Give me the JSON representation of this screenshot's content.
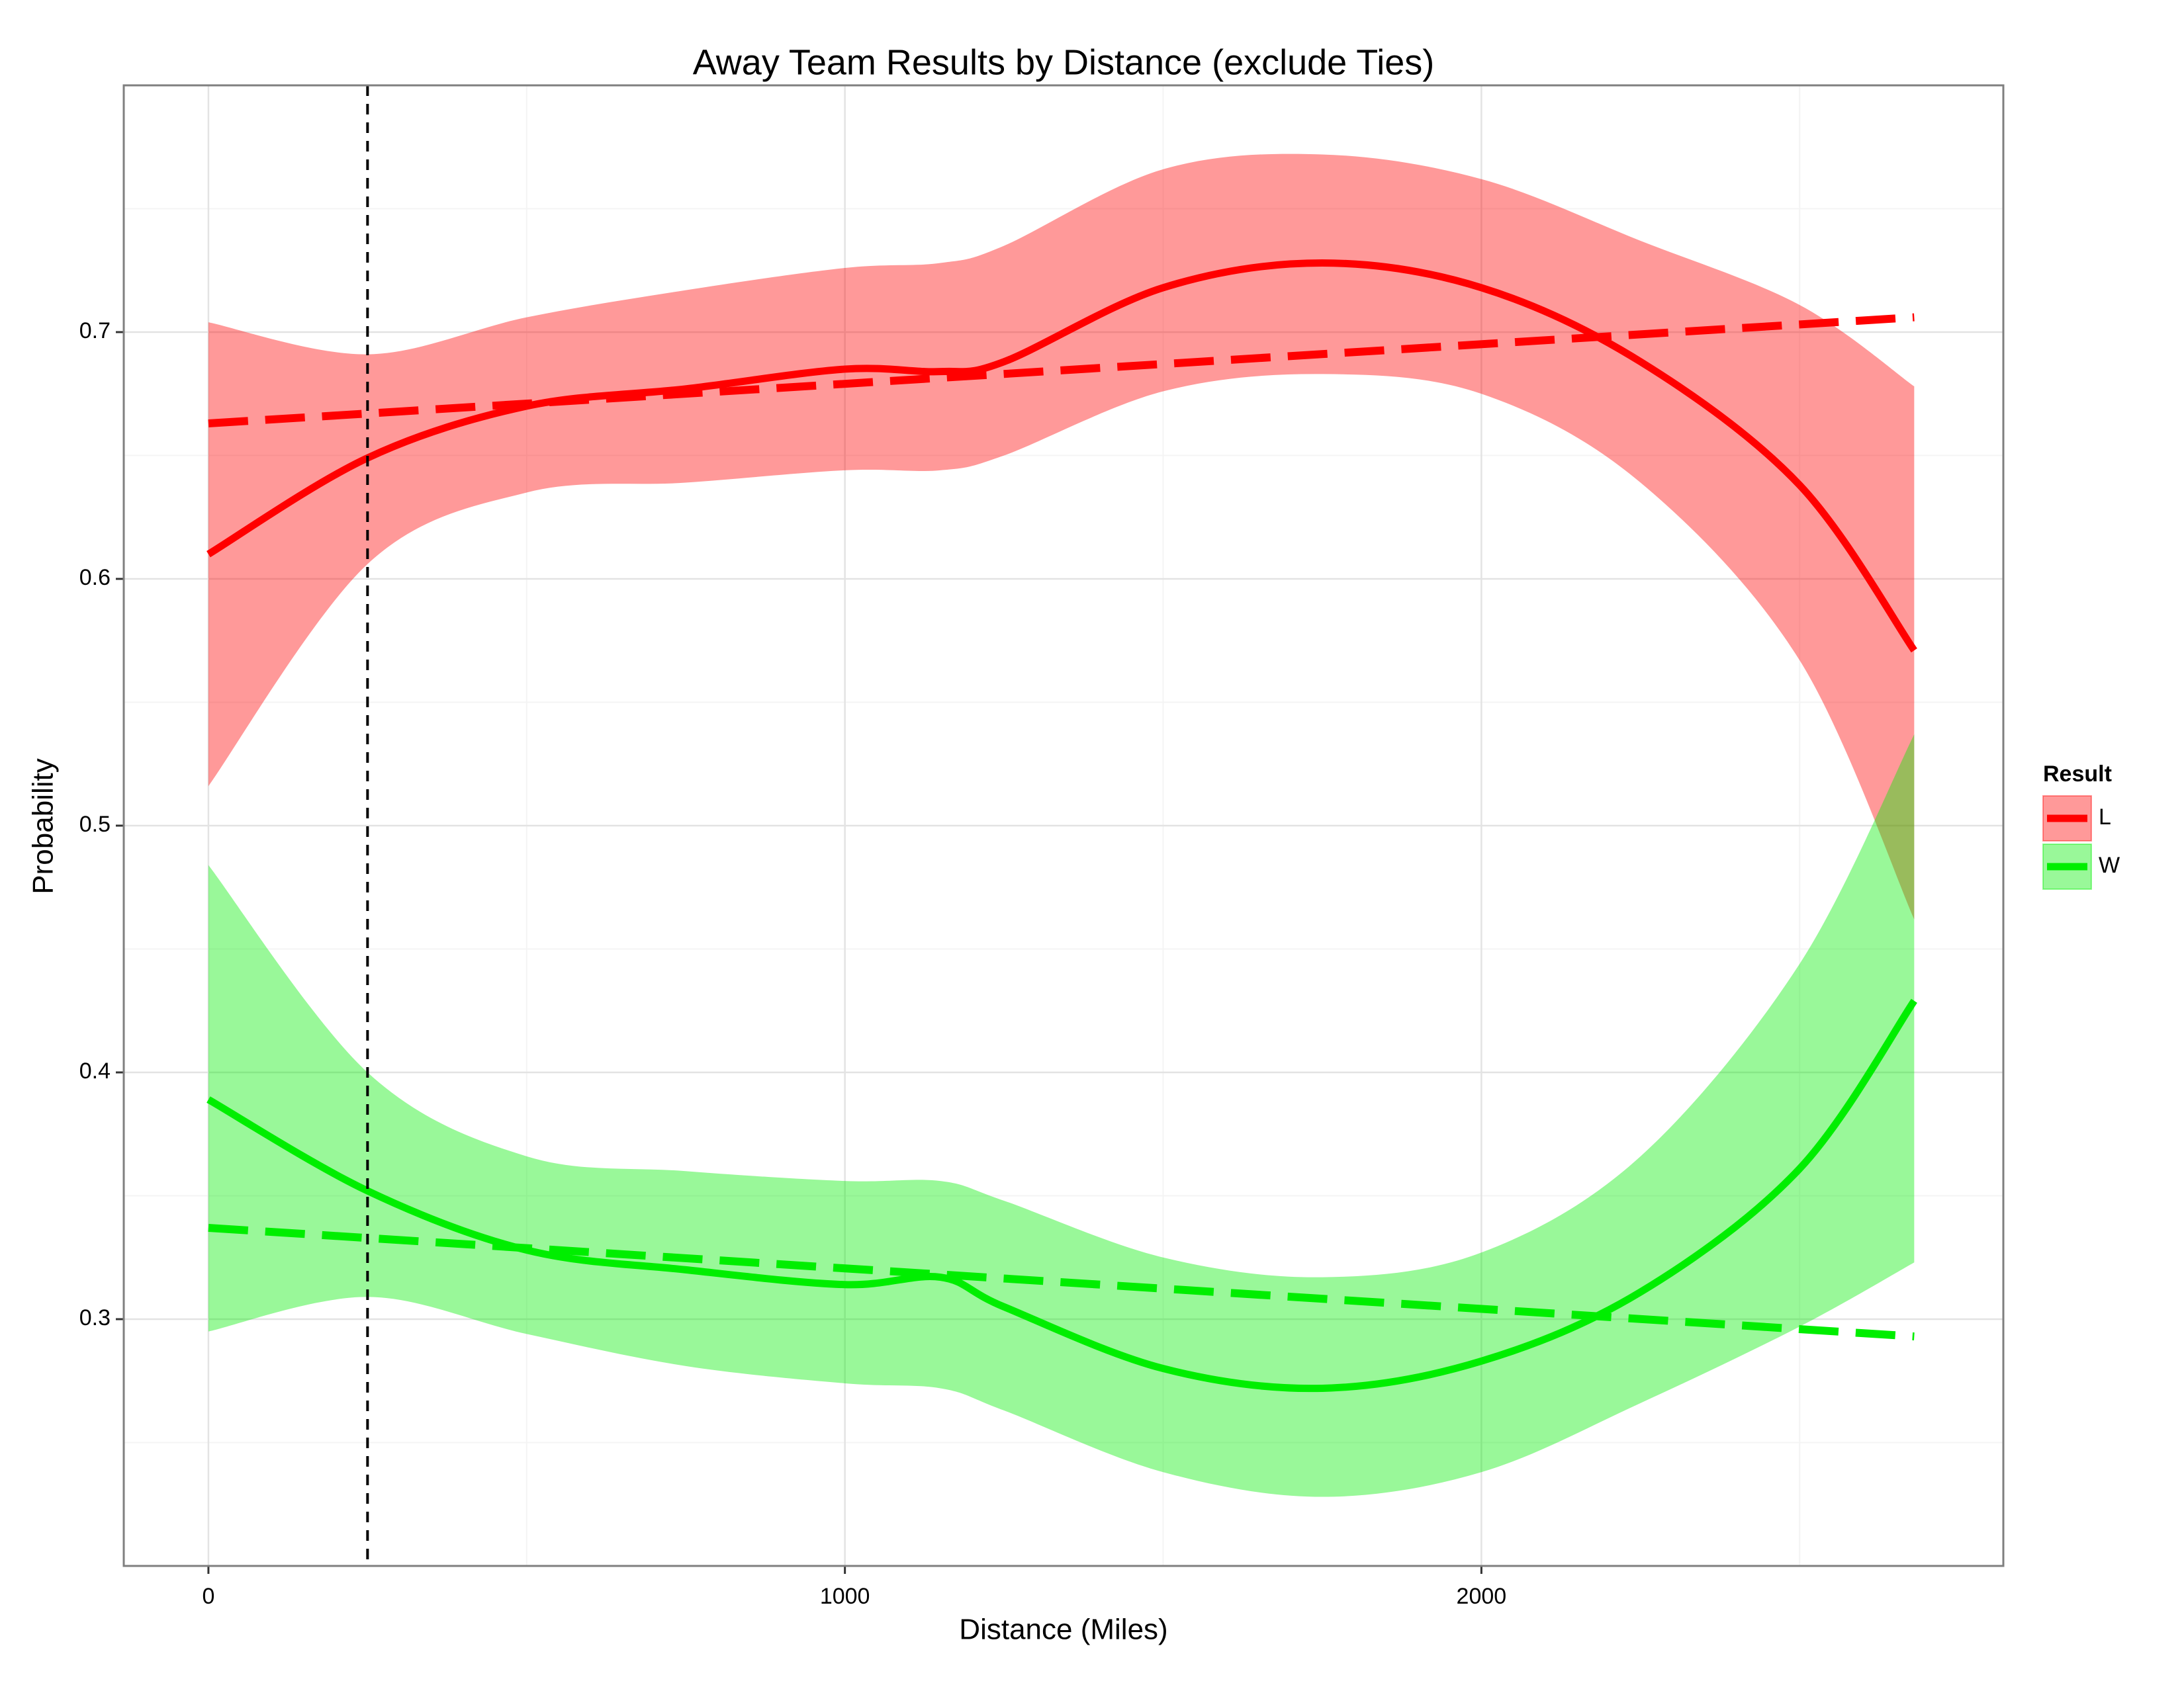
{
  "chart_data": {
    "type": "line",
    "title": "Away Team Results by Distance (exclude Ties)",
    "x_label": "Distance (Miles)",
    "y_label": "Probability",
    "legend_title": "Result",
    "legend_position": "right",
    "grid": true,
    "xlim": [
      -133,
      2820
    ],
    "ylim": [
      0.2,
      0.8
    ],
    "xticks": [
      0,
      1000,
      2000
    ],
    "yticks": [
      0.3,
      0.4,
      0.5,
      0.6,
      0.7
    ],
    "xminor": [
      500,
      1500,
      2500
    ],
    "yminor": [
      0.25,
      0.35,
      0.45,
      0.55,
      0.65,
      0.75
    ],
    "vline": 250,
    "x": [
      0,
      250,
      500,
      750,
      1000,
      1150,
      1250,
      1500,
      1750,
      2000,
      2250,
      2500,
      2680
    ],
    "linear_x": [
      0,
      2680
    ],
    "series": [
      {
        "name": "L",
        "color": "#ff0000",
        "values": [
          0.61,
          0.649,
          0.67,
          0.677,
          0.685,
          0.684,
          0.688,
          0.718,
          0.728,
          0.718,
          0.688,
          0.638,
          0.571
        ],
        "upper": [
          0.704,
          0.691,
          0.706,
          0.717,
          0.726,
          0.728,
          0.735,
          0.766,
          0.772,
          0.762,
          0.737,
          0.711,
          0.678
        ],
        "lower": [
          0.516,
          0.606,
          0.635,
          0.639,
          0.644,
          0.644,
          0.65,
          0.676,
          0.683,
          0.675,
          0.639,
          0.567,
          0.462
        ],
        "linear": [
          0.663,
          0.706
        ]
      },
      {
        "name": "W",
        "color": "#00ee00",
        "values": [
          0.389,
          0.352,
          0.328,
          0.32,
          0.314,
          0.317,
          0.305,
          0.28,
          0.272,
          0.283,
          0.311,
          0.361,
          0.429
        ],
        "upper": [
          0.484,
          0.4,
          0.366,
          0.36,
          0.356,
          0.356,
          0.348,
          0.325,
          0.317,
          0.327,
          0.366,
          0.444,
          0.537
        ],
        "lower": [
          0.295,
          0.309,
          0.294,
          0.281,
          0.274,
          0.272,
          0.263,
          0.238,
          0.228,
          0.238,
          0.266,
          0.297,
          0.323
        ],
        "linear": [
          0.337,
          0.293
        ]
      }
    ]
  }
}
